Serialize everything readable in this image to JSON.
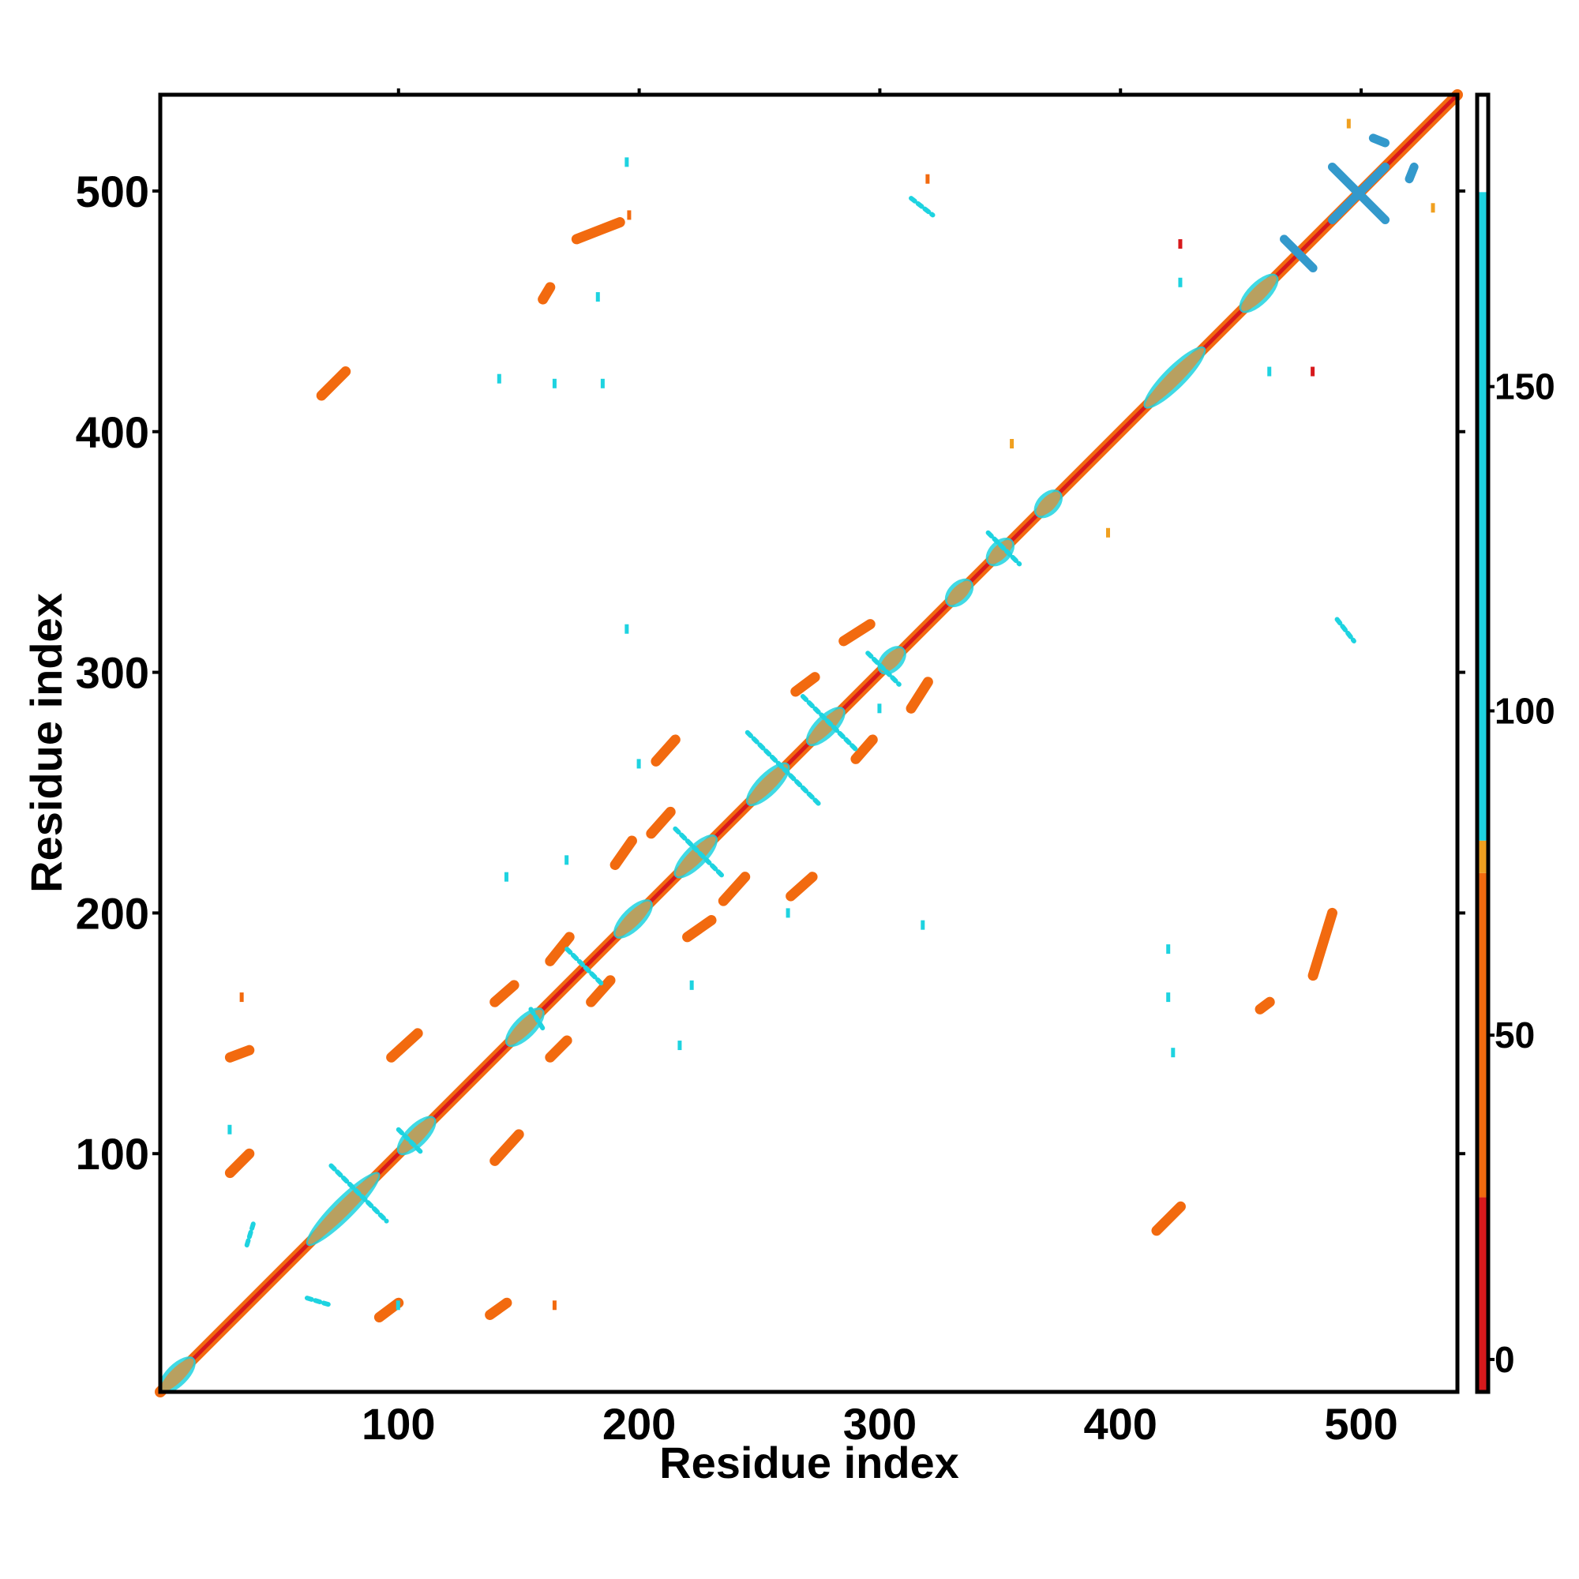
{
  "chart_data": {
    "type": "heatmap",
    "title": "",
    "xlabel": "Residue index",
    "ylabel": "Residue index",
    "xlim": [
      1,
      540
    ],
    "ylim": [
      1,
      540
    ],
    "x_ticks": [
      100,
      200,
      300,
      400,
      500
    ],
    "y_ticks": [
      100,
      200,
      300,
      400,
      500
    ],
    "colorbar": {
      "ticks": [
        0,
        50,
        100,
        150
      ],
      "range": [
        -5,
        195
      ],
      "stops": [
        {
          "from": -5,
          "to": 25,
          "color": "#d7191c"
        },
        {
          "from": 25,
          "to": 75,
          "color": "#f26a0f"
        },
        {
          "from": 75,
          "to": 80,
          "color": "#f0a020"
        },
        {
          "from": 80,
          "to": 180,
          "color": "#1ed3e0"
        },
        {
          "from": 180,
          "to": 195,
          "color": "#ffffff"
        }
      ]
    },
    "diagonal": {
      "from": 1,
      "to": 540,
      "color": "#d7191c",
      "band_color": "#f26a0f",
      "core_color": "#b8a060"
    },
    "diagonal_blobs": [
      {
        "start": 1,
        "end": 15,
        "color": "#b8a060"
      },
      {
        "start": 62,
        "end": 92,
        "color": "#b8a060"
      },
      {
        "start": 100,
        "end": 115,
        "color": "#b8a060"
      },
      {
        "start": 145,
        "end": 160,
        "color": "#b8a060"
      },
      {
        "start": 190,
        "end": 205,
        "color": "#b8a060"
      },
      {
        "start": 215,
        "end": 232,
        "color": "#b8a060"
      },
      {
        "start": 245,
        "end": 262,
        "color": "#b8a060"
      },
      {
        "start": 270,
        "end": 285,
        "color": "#b8a060"
      },
      {
        "start": 300,
        "end": 310,
        "color": "#b8a060"
      },
      {
        "start": 328,
        "end": 338,
        "color": "#b8a060"
      },
      {
        "start": 345,
        "end": 355,
        "color": "#b8a060"
      },
      {
        "start": 365,
        "end": 375,
        "color": "#b8a060"
      },
      {
        "start": 410,
        "end": 435,
        "color": "#b8a060"
      },
      {
        "start": 450,
        "end": 465,
        "color": "#b8a060"
      }
    ],
    "contact_segments": [
      {
        "x1": 30,
        "y1": 140,
        "x2": 38,
        "y2": 143,
        "color": "#f26a0f"
      },
      {
        "x1": 30,
        "y1": 92,
        "x2": 38,
        "y2": 100,
        "color": "#f26a0f"
      },
      {
        "x1": 92,
        "y1": 32,
        "x2": 100,
        "y2": 38,
        "color": "#f26a0f"
      },
      {
        "x1": 138,
        "y1": 33,
        "x2": 145,
        "y2": 38,
        "color": "#f26a0f"
      },
      {
        "x1": 62,
        "y1": 40,
        "x2": 72,
        "y2": 37,
        "color": "#1ed3e0"
      },
      {
        "x1": 37,
        "y1": 62,
        "x2": 40,
        "y2": 72,
        "color": "#1ed3e0"
      },
      {
        "x1": 68,
        "y1": 415,
        "x2": 78,
        "y2": 425,
        "color": "#f26a0f"
      },
      {
        "x1": 415,
        "y1": 68,
        "x2": 425,
        "y2": 78,
        "color": "#f26a0f"
      },
      {
        "x1": 140,
        "y1": 163,
        "x2": 148,
        "y2": 170,
        "color": "#f26a0f"
      },
      {
        "x1": 163,
        "y1": 140,
        "x2": 170,
        "y2": 147,
        "color": "#f26a0f"
      },
      {
        "x1": 163,
        "y1": 180,
        "x2": 171,
        "y2": 190,
        "color": "#f26a0f"
      },
      {
        "x1": 180,
        "y1": 163,
        "x2": 188,
        "y2": 172,
        "color": "#f26a0f"
      },
      {
        "x1": 205,
        "y1": 233,
        "x2": 213,
        "y2": 242,
        "color": "#f26a0f"
      },
      {
        "x1": 235,
        "y1": 205,
        "x2": 244,
        "y2": 215,
        "color": "#f26a0f"
      },
      {
        "x1": 207,
        "y1": 263,
        "x2": 215,
        "y2": 272,
        "color": "#f26a0f"
      },
      {
        "x1": 263,
        "y1": 207,
        "x2": 272,
        "y2": 215,
        "color": "#f26a0f"
      },
      {
        "x1": 265,
        "y1": 292,
        "x2": 273,
        "y2": 298,
        "color": "#f26a0f"
      },
      {
        "x1": 290,
        "y1": 264,
        "x2": 297,
        "y2": 272,
        "color": "#f26a0f"
      },
      {
        "x1": 285,
        "y1": 313,
        "x2": 296,
        "y2": 320,
        "color": "#f26a0f"
      },
      {
        "x1": 313,
        "y1": 285,
        "x2": 320,
        "y2": 296,
        "color": "#f26a0f"
      },
      {
        "x1": 140,
        "y1": 97,
        "x2": 150,
        "y2": 108,
        "color": "#f26a0f"
      },
      {
        "x1": 97,
        "y1": 140,
        "x2": 108,
        "y2": 150,
        "color": "#f26a0f"
      },
      {
        "x1": 190,
        "y1": 220,
        "x2": 197,
        "y2": 230,
        "color": "#f26a0f"
      },
      {
        "x1": 220,
        "y1": 190,
        "x2": 230,
        "y2": 197,
        "color": "#f26a0f"
      },
      {
        "x1": 174,
        "y1": 480,
        "x2": 192,
        "y2": 487,
        "color": "#f26a0f"
      },
      {
        "x1": 480,
        "y1": 174,
        "x2": 488,
        "y2": 200,
        "color": "#f26a0f"
      },
      {
        "x1": 313,
        "y1": 497,
        "x2": 322,
        "y2": 490,
        "color": "#1ed3e0"
      },
      {
        "x1": 490,
        "y1": 322,
        "x2": 497,
        "y2": 313,
        "color": "#1ed3e0"
      },
      {
        "x1": 458,
        "y1": 160,
        "x2": 462,
        "y2": 163,
        "color": "#f26a0f"
      },
      {
        "x1": 160,
        "y1": 455,
        "x2": 163,
        "y2": 460,
        "color": "#f26a0f"
      },
      {
        "x1": 155,
        "y1": 160,
        "x2": 160,
        "y2": 152,
        "color": "#1ed3e0"
      },
      {
        "x1": 170,
        "y1": 185,
        "x2": 185,
        "y2": 170,
        "color": "#1ed3e0"
      },
      {
        "x1": 72,
        "y1": 95,
        "x2": 95,
        "y2": 72,
        "color": "#1ed3e0"
      },
      {
        "x1": 100,
        "y1": 110,
        "x2": 110,
        "y2": 100,
        "color": "#1ed3e0"
      },
      {
        "x1": 215,
        "y1": 235,
        "x2": 235,
        "y2": 215,
        "color": "#1ed3e0"
      },
      {
        "x1": 245,
        "y1": 275,
        "x2": 275,
        "y2": 245,
        "color": "#1ed3e0"
      },
      {
        "x1": 268,
        "y1": 290,
        "x2": 290,
        "y2": 268,
        "color": "#1ed3e0"
      },
      {
        "x1": 295,
        "y1": 308,
        "x2": 308,
        "y2": 295,
        "color": "#1ed3e0"
      },
      {
        "x1": 345,
        "y1": 358,
        "x2": 358,
        "y2": 345,
        "color": "#1ed3e0"
      }
    ],
    "blue_segments": [
      {
        "x1": 488,
        "y1": 510,
        "x2": 510,
        "y2": 488,
        "color": "#3399cc"
      },
      {
        "x1": 488,
        "y1": 488,
        "x2": 510,
        "y2": 510,
        "color": "#3399cc"
      },
      {
        "x1": 468,
        "y1": 480,
        "x2": 480,
        "y2": 468,
        "color": "#3399cc"
      },
      {
        "x1": 505,
        "y1": 522,
        "x2": 510,
        "y2": 520,
        "color": "#3399cc"
      },
      {
        "x1": 520,
        "y1": 505,
        "x2": 522,
        "y2": 510,
        "color": "#3399cc"
      }
    ],
    "speckles": [
      {
        "x": 165,
        "y": 420,
        "color": "#1ed3e0"
      },
      {
        "x": 185,
        "y": 420,
        "color": "#1ed3e0"
      },
      {
        "x": 142,
        "y": 422,
        "color": "#1ed3e0"
      },
      {
        "x": 420,
        "y": 165,
        "color": "#1ed3e0"
      },
      {
        "x": 420,
        "y": 185,
        "color": "#1ed3e0"
      },
      {
        "x": 422,
        "y": 142,
        "color": "#1ed3e0"
      },
      {
        "x": 425,
        "y": 462,
        "color": "#1ed3e0"
      },
      {
        "x": 462,
        "y": 425,
        "color": "#1ed3e0"
      },
      {
        "x": 170,
        "y": 222,
        "color": "#1ed3e0"
      },
      {
        "x": 222,
        "y": 170,
        "color": "#1ed3e0"
      },
      {
        "x": 195,
        "y": 512,
        "color": "#1ed3e0"
      },
      {
        "x": 355,
        "y": 395,
        "color": "#f0a020"
      },
      {
        "x": 395,
        "y": 358,
        "color": "#f0a020"
      },
      {
        "x": 320,
        "y": 505,
        "color": "#f26a0f"
      },
      {
        "x": 530,
        "y": 493,
        "color": "#f0a020"
      },
      {
        "x": 495,
        "y": 528,
        "color": "#f0a020"
      },
      {
        "x": 183,
        "y": 456,
        "color": "#1ed3e0"
      },
      {
        "x": 196,
        "y": 490,
        "color": "#f26a0f"
      },
      {
        "x": 217,
        "y": 145,
        "color": "#1ed3e0"
      },
      {
        "x": 145,
        "y": 215,
        "color": "#1ed3e0"
      },
      {
        "x": 300,
        "y": 285,
        "color": "#1ed3e0"
      },
      {
        "x": 318,
        "y": 195,
        "color": "#1ed3e0"
      },
      {
        "x": 195,
        "y": 318,
        "color": "#1ed3e0"
      },
      {
        "x": 480,
        "y": 425,
        "color": "#d7191c"
      },
      {
        "x": 425,
        "y": 478,
        "color": "#d7191c"
      },
      {
        "x": 100,
        "y": 37,
        "color": "#1ed3e0"
      },
      {
        "x": 165,
        "y": 37,
        "color": "#f26a0f"
      },
      {
        "x": 35,
        "y": 165,
        "color": "#f26a0f"
      },
      {
        "x": 30,
        "y": 110,
        "color": "#1ed3e0"
      },
      {
        "x": 262,
        "y": 200,
        "color": "#1ed3e0"
      },
      {
        "x": 200,
        "y": 262,
        "color": "#1ed3e0"
      }
    ]
  }
}
